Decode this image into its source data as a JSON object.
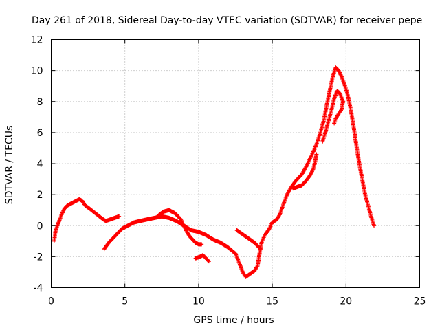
{
  "chart_data": {
    "type": "scatter",
    "title": "Day 261 of 2018, Sidereal Day-to-day VTEC variation (SDTVAR) for receiver pepe",
    "xlabel": "GPS time / hours",
    "ylabel": "SDTVAR / TECUs",
    "xlim": [
      0,
      25
    ],
    "ylim": [
      -4,
      12
    ],
    "xticks": [
      "0",
      "5",
      "10",
      "15",
      "20",
      "25"
    ],
    "yticks": [
      "-4",
      "-2",
      "0",
      "2",
      "4",
      "6",
      "8",
      "10",
      "12"
    ],
    "grid": true,
    "marker": "plus",
    "color": "#ff0000",
    "series": [
      {
        "name": "SDTVAR",
        "segments": [
          [
            [
              0.2,
              -1.0
            ],
            [
              0.3,
              -0.3
            ],
            [
              0.5,
              0.2
            ],
            [
              0.7,
              0.7
            ],
            [
              0.9,
              1.1
            ],
            [
              1.1,
              1.3
            ],
            [
              1.3,
              1.4
            ],
            [
              1.5,
              1.5
            ],
            [
              1.7,
              1.6
            ],
            [
              1.9,
              1.7
            ],
            [
              2.1,
              1.6
            ],
            [
              2.3,
              1.3
            ],
            [
              2.6,
              1.1
            ],
            [
              3.0,
              0.8
            ],
            [
              3.4,
              0.5
            ],
            [
              3.7,
              0.3
            ],
            [
              4.0,
              0.4
            ],
            [
              4.3,
              0.5
            ],
            [
              4.6,
              0.6
            ]
          ],
          [
            [
              3.6,
              -1.5
            ],
            [
              3.9,
              -1.1
            ],
            [
              4.2,
              -0.8
            ],
            [
              4.5,
              -0.5
            ],
            [
              4.8,
              -0.2
            ],
            [
              5.2,
              0.0
            ],
            [
              5.6,
              0.2
            ],
            [
              6.0,
              0.3
            ],
            [
              6.5,
              0.4
            ],
            [
              7.0,
              0.5
            ],
            [
              7.5,
              0.6
            ],
            [
              8.0,
              0.5
            ],
            [
              8.5,
              0.3
            ],
            [
              9.0,
              0.0
            ],
            [
              9.5,
              -0.3
            ],
            [
              10.0,
              -0.4
            ],
            [
              10.5,
              -0.6
            ],
            [
              11.0,
              -0.9
            ],
            [
              11.5,
              -1.1
            ],
            [
              12.0,
              -1.4
            ],
            [
              12.5,
              -1.8
            ],
            [
              12.8,
              -2.5
            ],
            [
              13.0,
              -3.0
            ],
            [
              13.2,
              -3.3
            ],
            [
              13.5,
              -3.1
            ],
            [
              13.8,
              -2.9
            ],
            [
              14.0,
              -2.6
            ],
            [
              14.1,
              -2.0
            ],
            [
              14.2,
              -1.4
            ],
            [
              14.3,
              -1.0
            ],
            [
              14.5,
              -0.6
            ],
            [
              14.8,
              -0.2
            ],
            [
              15.0,
              0.2
            ],
            [
              15.3,
              0.4
            ],
            [
              15.5,
              0.7
            ],
            [
              15.8,
              1.5
            ],
            [
              16.0,
              2.0
            ],
            [
              16.3,
              2.5
            ],
            [
              16.6,
              2.9
            ],
            [
              17.0,
              3.3
            ],
            [
              17.3,
              3.8
            ],
            [
              17.6,
              4.4
            ],
            [
              17.9,
              5.0
            ],
            [
              18.2,
              5.8
            ],
            [
              18.5,
              6.8
            ],
            [
              18.7,
              7.8
            ],
            [
              18.9,
              8.7
            ],
            [
              19.1,
              9.6
            ],
            [
              19.3,
              10.2
            ],
            [
              19.5,
              10.0
            ],
            [
              19.7,
              9.6
            ],
            [
              19.9,
              9.1
            ],
            [
              20.1,
              8.5
            ],
            [
              20.3,
              7.6
            ],
            [
              20.5,
              6.5
            ],
            [
              20.7,
              5.2
            ],
            [
              20.9,
              4.0
            ],
            [
              21.1,
              3.0
            ],
            [
              21.3,
              2.0
            ],
            [
              21.5,
              1.3
            ],
            [
              21.7,
              0.6
            ],
            [
              21.9,
              0.0
            ]
          ],
          [
            [
              7.2,
              0.6
            ],
            [
              7.6,
              0.9
            ],
            [
              8.0,
              1.0
            ],
            [
              8.4,
              0.8
            ],
            [
              8.8,
              0.4
            ],
            [
              9.0,
              0.0
            ],
            [
              9.2,
              -0.4
            ],
            [
              9.4,
              -0.7
            ],
            [
              9.6,
              -0.9
            ],
            [
              9.8,
              -1.1
            ],
            [
              10.0,
              -1.2
            ],
            [
              10.2,
              -1.2
            ]
          ],
          [
            [
              9.8,
              -2.1
            ],
            [
              10.1,
              -2.0
            ],
            [
              10.3,
              -1.9
            ],
            [
              10.5,
              -2.1
            ],
            [
              10.7,
              -2.3
            ]
          ],
          [
            [
              12.6,
              -0.3
            ],
            [
              12.9,
              -0.5
            ],
            [
              13.2,
              -0.7
            ],
            [
              13.5,
              -0.9
            ],
            [
              13.8,
              -1.1
            ],
            [
              14.0,
              -1.3
            ],
            [
              14.2,
              -1.5
            ]
          ],
          [
            [
              16.4,
              2.4
            ],
            [
              16.7,
              2.5
            ],
            [
              17.0,
              2.6
            ],
            [
              17.3,
              2.9
            ],
            [
              17.6,
              3.3
            ],
            [
              17.8,
              3.7
            ],
            [
              17.9,
              4.1
            ],
            [
              18.0,
              4.6
            ]
          ],
          [
            [
              18.4,
              5.4
            ],
            [
              18.6,
              6.0
            ],
            [
              18.8,
              6.7
            ],
            [
              19.0,
              7.4
            ],
            [
              19.2,
              8.2
            ],
            [
              19.4,
              8.7
            ],
            [
              19.6,
              8.5
            ],
            [
              19.8,
              8.0
            ],
            [
              19.7,
              7.5
            ],
            [
              19.5,
              7.2
            ],
            [
              19.3,
              6.9
            ],
            [
              19.2,
              6.6
            ]
          ]
        ]
      }
    ]
  }
}
